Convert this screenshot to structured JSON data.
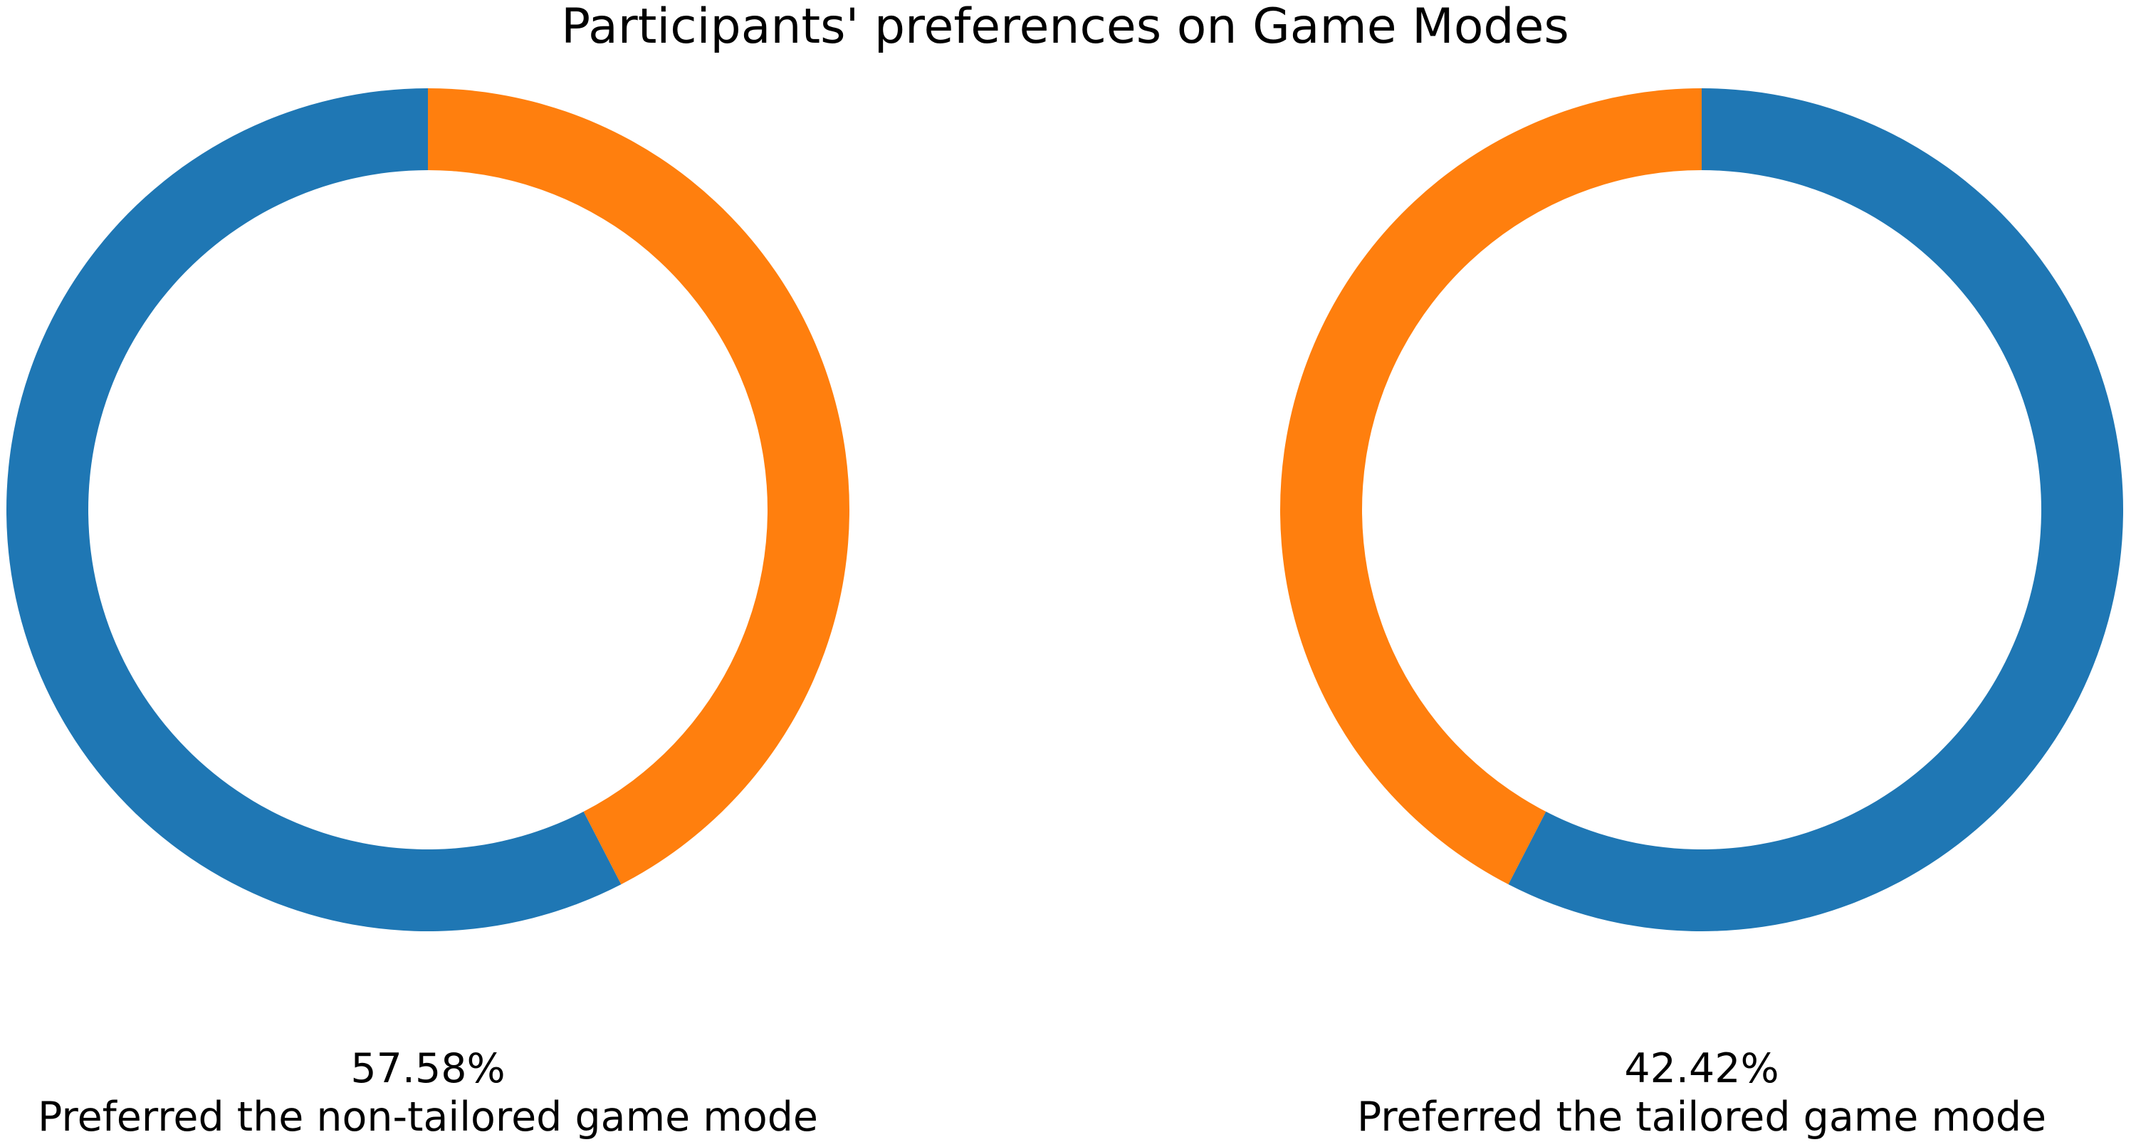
{
  "title": "Participants' preferences on Game Modes",
  "chart_data": [
    {
      "type": "pie",
      "values": [
        57.58,
        42.42
      ],
      "value_labels": [
        "57.58%",
        null
      ],
      "colors": [
        "#1f77b4",
        "#ff7f0e"
      ],
      "start_angle": 90,
      "counterclockwise": true,
      "donut": true,
      "xlabel": "Preferred the non-tailored game mode"
    },
    {
      "type": "pie",
      "values": [
        42.42,
        57.58
      ],
      "value_labels": [
        "42.42%",
        null
      ],
      "colors": [
        "#ff7f0e",
        "#1f77b4"
      ],
      "start_angle": 90,
      "counterclockwise": true,
      "donut": true,
      "xlabel": "Preferred the tailored game mode"
    }
  ]
}
